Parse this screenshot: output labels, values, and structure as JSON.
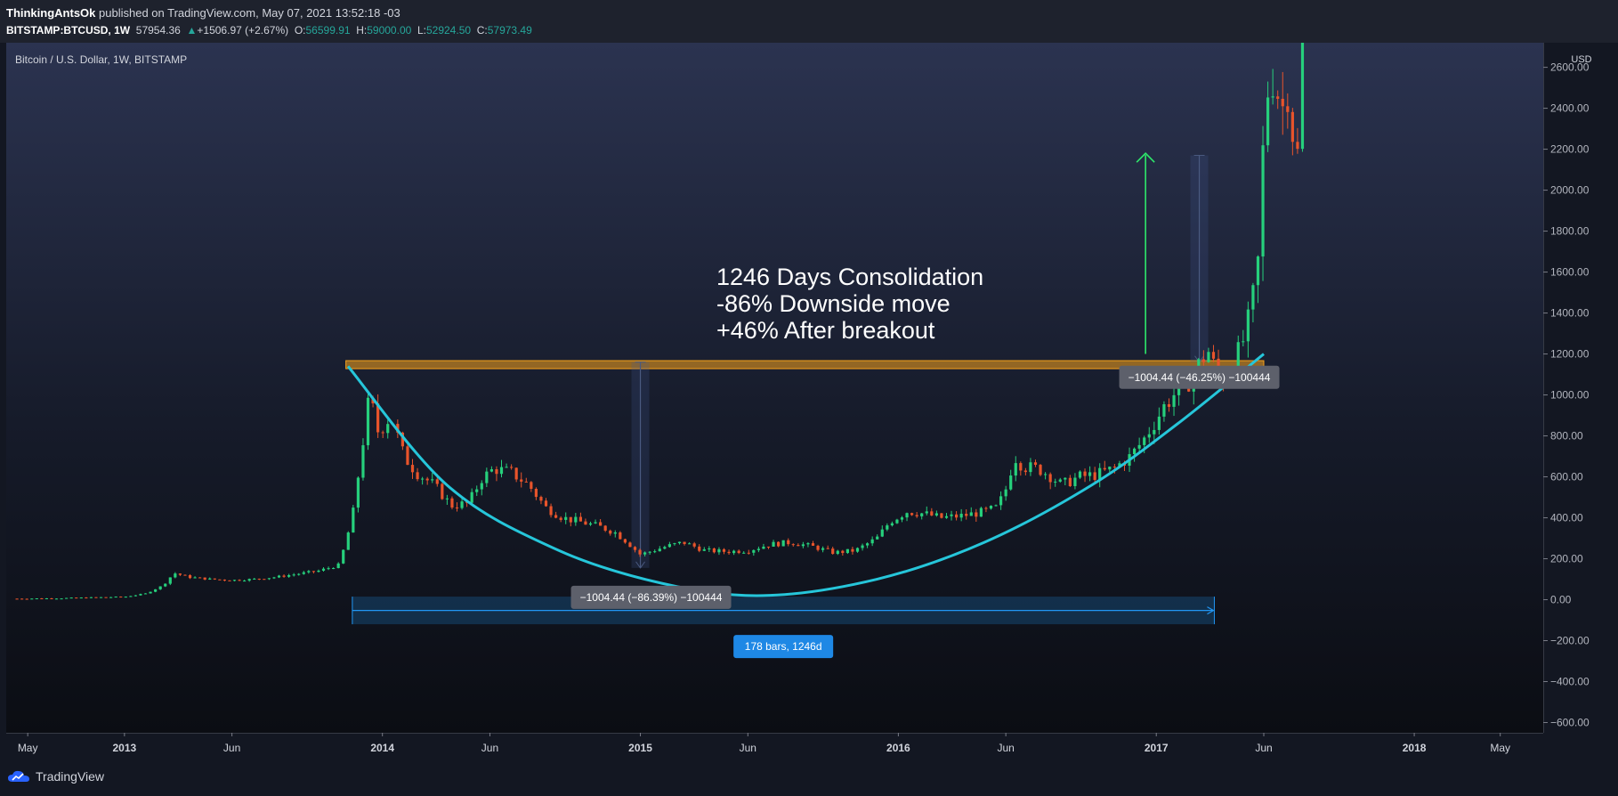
{
  "header": {
    "publisher": "ThinkingAntsOk",
    "published_text": "published on TradingView.com, May 07, 2021 13:52:18 -03",
    "symbol": "BITSTAMP:BTCUSD, 1W",
    "last": "57954.36",
    "change": "+1506.97 (+2.67%)",
    "o_label": "O:",
    "o": "56599.91",
    "h_label": "H:",
    "h": "59000.00",
    "l_label": "L:",
    "l": "52924.50",
    "c_label": "C:",
    "c": "57973.49"
  },
  "footer": {
    "brand": "TradingView"
  },
  "colors": {
    "background": "#131722",
    "up": "#26d07c",
    "down": "#e8542b",
    "curve": "#26c6da",
    "resistance": "#f7a21b",
    "measure": "#2196f3"
  },
  "chart_data": {
    "type": "candlestick",
    "title": "Bitcoin / U.S. Dollar, 1W, BITSTAMP",
    "currency_label": "USD",
    "y_ticks": [
      2600,
      2400,
      2200,
      2000,
      1800,
      1600,
      1400,
      1200,
      1000,
      800,
      600,
      400,
      200,
      0,
      -200,
      -400,
      -600
    ],
    "y_tick_labels": [
      "2600.00",
      "2400.00",
      "2200.00",
      "2000.00",
      "1800.00",
      "1600.00",
      "1400.00",
      "1200.00",
      "1000.00",
      "800.00",
      "600.00",
      "400.00",
      "200.00",
      "0.00",
      "−200.00",
      "−400.00",
      "−600.00"
    ],
    "ylim": [
      -650,
      2720
    ],
    "x_ticks": [
      {
        "label": "May",
        "t": 0.5
      },
      {
        "label": "2013",
        "t": 5.0
      },
      {
        "label": "Jun",
        "t": 10.0
      },
      {
        "label": "2014",
        "t": 17.0
      },
      {
        "label": "Jun",
        "t": 22.0
      },
      {
        "label": "2015",
        "t": 29.0
      },
      {
        "label": "Jun",
        "t": 34.0
      },
      {
        "label": "2016",
        "t": 41.0
      },
      {
        "label": "Jun",
        "t": 46.0
      },
      {
        "label": "2017",
        "t": 53.0
      },
      {
        "label": "Jun",
        "t": 58.0
      },
      {
        "label": "2018",
        "t": 65.0
      },
      {
        "label": "May",
        "t": 69.0
      }
    ],
    "xlim": [
      -0.5,
      71.0
    ],
    "price_path": [
      [
        0,
        5
      ],
      [
        2,
        7
      ],
      [
        4,
        12
      ],
      [
        5,
        14
      ],
      [
        6,
        30
      ],
      [
        6.8,
        70
      ],
      [
        7.3,
        130
      ],
      [
        8,
        110
      ],
      [
        9,
        100
      ],
      [
        10,
        95
      ],
      [
        11,
        100
      ],
      [
        12,
        110
      ],
      [
        13,
        125
      ],
      [
        14,
        140
      ],
      [
        15,
        170
      ],
      [
        15.6,
        400
      ],
      [
        16,
        700
      ],
      [
        16.4,
        1000
      ],
      [
        16.8,
        820
      ],
      [
        17.4,
        900
      ],
      [
        18,
        700
      ],
      [
        18.6,
        620
      ],
      [
        19.4,
        560
      ],
      [
        20.2,
        460
      ],
      [
        21,
        470
      ],
      [
        21.6,
        590
      ],
      [
        22.2,
        640
      ],
      [
        23,
        620
      ],
      [
        23.8,
        560
      ],
      [
        24.6,
        450
      ],
      [
        25.4,
        400
      ],
      [
        26.2,
        380
      ],
      [
        27,
        360
      ],
      [
        27.8,
        330
      ],
      [
        28.4,
        280
      ],
      [
        29,
        220
      ],
      [
        29.6,
        240
      ],
      [
        30.2,
        260
      ],
      [
        31,
        280
      ],
      [
        32,
        240
      ],
      [
        33,
        235
      ],
      [
        34,
        240
      ],
      [
        35,
        270
      ],
      [
        36,
        280
      ],
      [
        37,
        260
      ],
      [
        38,
        230
      ],
      [
        39,
        240
      ],
      [
        40,
        300
      ],
      [
        40.6,
        380
      ],
      [
        41.4,
        430
      ],
      [
        42.2,
        420
      ],
      [
        43,
        400
      ],
      [
        44,
        410
      ],
      [
        45,
        430
      ],
      [
        45.6,
        450
      ],
      [
        46,
        540
      ],
      [
        46.4,
        700
      ],
      [
        46.8,
        650
      ],
      [
        47.5,
        640
      ],
      [
        48,
        610
      ],
      [
        48.6,
        560
      ],
      [
        49.4,
        600
      ],
      [
        50.2,
        610
      ],
      [
        51,
        640
      ],
      [
        51.8,
        700
      ],
      [
        52.4,
        780
      ],
      [
        53,
        880
      ],
      [
        53.4,
        950
      ],
      [
        53.8,
        1000
      ],
      [
        54.4,
        1050
      ],
      [
        55,
        1150
      ],
      [
        55.4,
        1220
      ],
      [
        56,
        1050
      ],
      [
        56.6,
        1150
      ],
      [
        57,
        1250
      ],
      [
        57.4,
        1400
      ],
      [
        57.8,
        1700
      ],
      [
        58,
        2300
      ],
      [
        58.3,
        2600
      ],
      [
        58.6,
        2500
      ],
      [
        58.9,
        2400
      ],
      [
        59.2,
        2550
      ],
      [
        59.5,
        2000
      ],
      [
        59.8,
        2720
      ]
    ],
    "resistance_level": 1150,
    "resistance_range": [
      15.3,
      58.0
    ],
    "curve_points": [
      [
        15.4,
        1140
      ],
      [
        20,
        560
      ],
      [
        25,
        250
      ],
      [
        30,
        80
      ],
      [
        34.7,
        20
      ],
      [
        40,
        100
      ],
      [
        45,
        280
      ],
      [
        50,
        560
      ],
      [
        54,
        860
      ],
      [
        58.0,
        1200
      ]
    ],
    "measure_down": {
      "label": "−1004.44 (−86.39%) −100444",
      "x": 29.0,
      "from": 1160,
      "to": 155
    },
    "measure_up": {
      "label": "−1004.44 (−46.25%) −100444",
      "x": 55.0,
      "from": 2170,
      "to": 1160
    },
    "green_arrow": {
      "x": 52.5,
      "from": 1200,
      "to": 2180
    },
    "range_box": {
      "x0": 15.6,
      "x1": 55.7,
      "y0": 15,
      "y1": -120,
      "label": "178 bars, 1246d"
    },
    "annotation": [
      "1246 Days Consolidation",
      "-86% Downside move",
      "+46% After breakout"
    ]
  }
}
